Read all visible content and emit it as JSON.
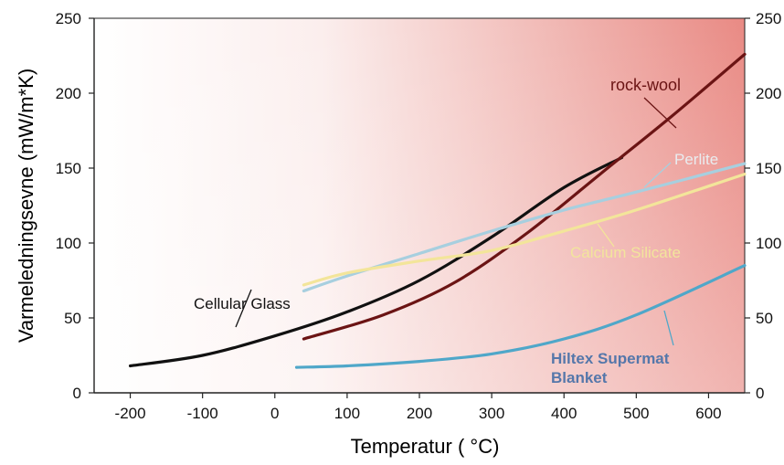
{
  "chart_data": {
    "type": "line",
    "xlabel": "Temperatur ( °C)",
    "ylabel": "Varmeledningsevne (mW/m*K)",
    "xlim": [
      -250,
      650
    ],
    "ylim": [
      0,
      250
    ],
    "x_ticks": [
      -200,
      -100,
      0,
      100,
      200,
      300,
      400,
      500,
      600
    ],
    "y_ticks": [
      0,
      50,
      100,
      150,
      200,
      250
    ],
    "grid": false,
    "background": "gradient white (left) to red (right)",
    "series": [
      {
        "name": "Cellular Glass",
        "color": "#111111",
        "x": [
          -200,
          -100,
          0,
          100,
          200,
          300,
          400,
          480
        ],
        "y": [
          18,
          25,
          38,
          54,
          75,
          104,
          137,
          157
        ]
      },
      {
        "name": "rock-wool",
        "color": "#6b1414",
        "x": [
          40,
          150,
          250,
          350,
          450,
          550,
          650
        ],
        "y": [
          36,
          52,
          74,
          107,
          146,
          185,
          226
        ]
      },
      {
        "name": "Perlite",
        "color": "#a7cfdf",
        "x": [
          40,
          100,
          200,
          300,
          400,
          500,
          650
        ],
        "y": [
          68,
          78,
          93,
          108,
          122,
          134,
          153
        ]
      },
      {
        "name": "Calcium Silicate",
        "color": "#f3e59a",
        "x": [
          40,
          100,
          200,
          300,
          400,
          500,
          650
        ],
        "y": [
          72,
          80,
          88,
          95,
          108,
          122,
          146
        ]
      },
      {
        "name": "Hiltex Supermat Blanket",
        "color": "#4fa7c9",
        "x": [
          30,
          100,
          200,
          300,
          400,
          500,
          650
        ],
        "y": [
          17,
          18,
          21,
          26,
          36,
          52,
          85
        ]
      }
    ],
    "annotations": [
      {
        "text": "rock-wool",
        "color": "#6b1414"
      },
      {
        "text": "Perlite",
        "color": "#e9ecef"
      },
      {
        "text": "Calcium Silicate",
        "color": "#f2e59c"
      },
      {
        "text": "Cellular Glass",
        "color": "#111111"
      },
      {
        "text": "Hiltex Supermat",
        "color": "#5577aa"
      },
      {
        "text": "Blanket",
        "color": "#5577aa"
      }
    ]
  }
}
